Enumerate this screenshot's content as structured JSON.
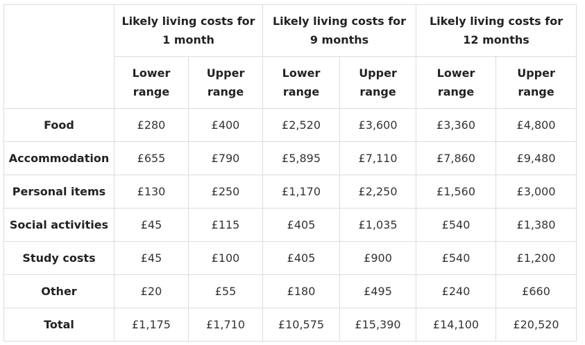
{
  "table": {
    "groups": [
      "Likely living costs for 1 month",
      "Likely living costs for 9 months",
      "Likely living costs for 12 months"
    ],
    "subheaders": [
      "Lower range",
      "Upper range",
      "Lower range",
      "Upper range",
      "Lower range",
      "Upper range"
    ],
    "rows": [
      [
        "Food",
        "£280",
        "£400",
        "£2,520",
        "£3,600",
        "£3,360",
        "£4,800"
      ],
      [
        "Accommodation",
        "£655",
        "£790",
        "£5,895",
        "£7,110",
        "£7,860",
        "£9,480"
      ],
      [
        "Personal items",
        "£130",
        "£250",
        "£1,170",
        "£2,250",
        "£1,560",
        "£3,000"
      ],
      [
        "Social activities",
        "£45",
        "£115",
        "£405",
        "£1,035",
        "£540",
        "£1,380"
      ],
      [
        "Study costs",
        "£45",
        "£100",
        "£405",
        "£900",
        "£540",
        "£1,200"
      ],
      [
        "Other",
        "£20",
        "£55",
        "£180",
        "£495",
        "£240",
        "£660"
      ],
      [
        "Total",
        "£1,175",
        "£1,710",
        "£10,575",
        "£15,390",
        "£14,100",
        "£20,520"
      ]
    ]
  }
}
